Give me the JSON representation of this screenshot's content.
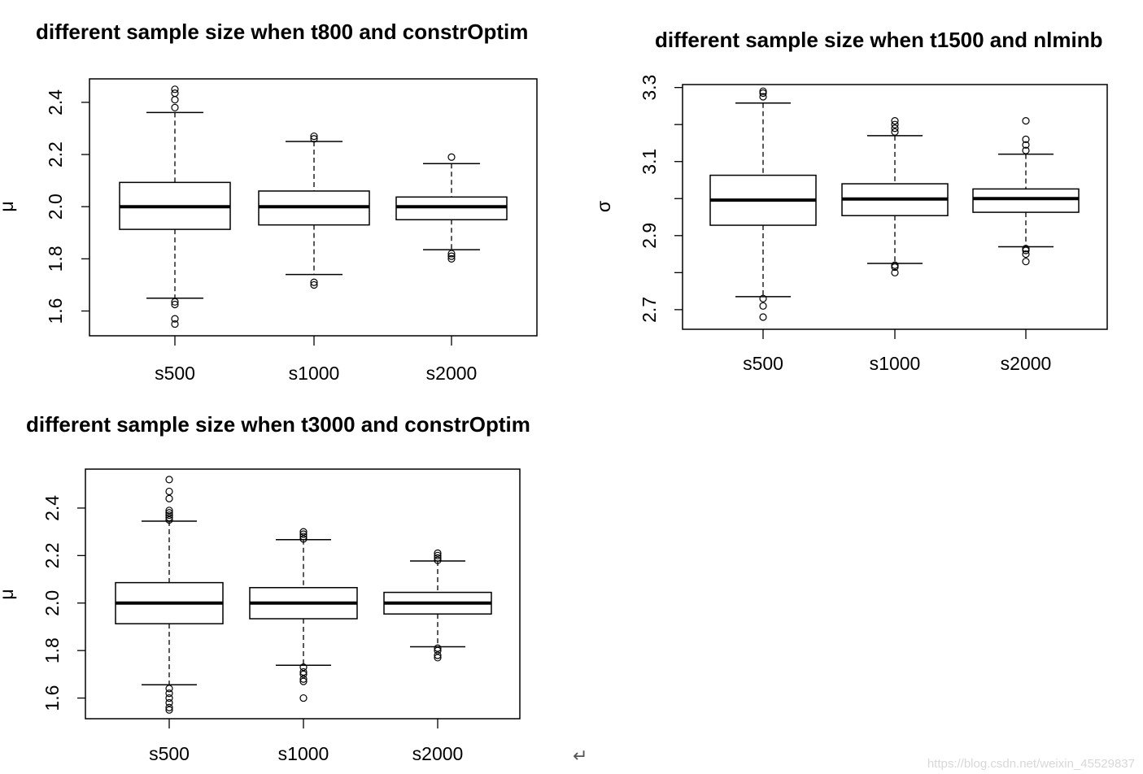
{
  "chart_data": [
    {
      "type": "box",
      "title": "different sample size when t800 and constrOptim",
      "ylabel": "μ",
      "xlabel": "",
      "categories": [
        "s500",
        "s1000",
        "s2000"
      ],
      "ylim": [
        1.505,
        2.49
      ],
      "yticks": [
        1.6,
        1.8,
        2.0,
        2.2,
        2.4
      ],
      "ytick_labels": [
        "1.6",
        "1.8",
        "2.0",
        "2.2",
        "2.4"
      ],
      "series": [
        {
          "category": "s500",
          "whisker_low": 1.649,
          "q1": 1.913,
          "median": 2.0,
          "q3": 2.093,
          "whisker_high": 2.361,
          "outliers": [
            2.45,
            2.435,
            2.41,
            2.38,
            1.635,
            1.625,
            1.57,
            1.55
          ]
        },
        {
          "category": "s1000",
          "whisker_low": 1.74,
          "q1": 1.93,
          "median": 2.0,
          "q3": 2.06,
          "whisker_high": 2.25,
          "outliers": [
            2.27,
            2.26,
            1.71,
            1.7
          ]
        },
        {
          "category": "s2000",
          "whisker_low": 1.835,
          "q1": 1.95,
          "median": 2.0,
          "q3": 2.037,
          "whisker_high": 2.165,
          "outliers": [
            2.19,
            1.82,
            1.81,
            1.8
          ]
        }
      ]
    },
    {
      "type": "box",
      "title": "different sample size when t1500 and nlminb",
      "ylabel": "σ",
      "xlabel": "",
      "categories": [
        "s500",
        "s1000",
        "s2000"
      ],
      "ylim": [
        2.647,
        3.308
      ],
      "yticks": [
        2.7,
        2.8,
        2.9,
        3.0,
        3.1,
        3.2,
        3.3
      ],
      "ytick_labels": [
        "2.7",
        "",
        "2.9",
        "",
        "3.1",
        "",
        "3.3"
      ],
      "series": [
        {
          "category": "s500",
          "whisker_low": 2.735,
          "q1": 2.928,
          "median": 2.996,
          "q3": 3.063,
          "whisker_high": 3.258,
          "outliers": [
            3.29,
            3.285,
            3.275,
            2.73,
            2.71,
            2.68
          ]
        },
        {
          "category": "s1000",
          "whisker_low": 2.825,
          "q1": 2.954,
          "median": 2.999,
          "q3": 3.04,
          "whisker_high": 3.17,
          "outliers": [
            3.21,
            3.2,
            3.19,
            3.18,
            2.82,
            2.815,
            2.8
          ]
        },
        {
          "category": "s2000",
          "whisker_low": 2.87,
          "q1": 2.963,
          "median": 3.0,
          "q3": 3.026,
          "whisker_high": 3.12,
          "outliers": [
            3.21,
            3.16,
            3.145,
            3.13,
            2.865,
            2.86,
            2.85,
            2.83
          ]
        }
      ]
    },
    {
      "type": "box",
      "title": "different sample size when t3000 and constrOptim",
      "ylabel": "μ",
      "xlabel": "",
      "categories": [
        "s500",
        "s1000",
        "s2000"
      ],
      "ylim": [
        1.513,
        2.564
      ],
      "yticks": [
        1.6,
        1.8,
        2.0,
        2.2,
        2.4
      ],
      "ytick_labels": [
        "1.6",
        "1.8",
        "2.0",
        "2.2",
        "2.4"
      ],
      "series": [
        {
          "category": "s500",
          "whisker_low": 1.656,
          "q1": 1.913,
          "median": 2.0,
          "q3": 2.086,
          "whisker_high": 2.345,
          "outliers": [
            2.52,
            2.47,
            2.44,
            2.39,
            2.38,
            2.37,
            2.36,
            2.35,
            1.64,
            1.62,
            1.6,
            1.58,
            1.56,
            1.55
          ]
        },
        {
          "category": "s1000",
          "whisker_low": 1.738,
          "q1": 1.934,
          "median": 2.0,
          "q3": 2.065,
          "whisker_high": 2.267,
          "outliers": [
            2.3,
            2.29,
            2.28,
            2.27,
            1.73,
            1.71,
            1.7,
            1.68,
            1.67,
            1.6
          ]
        },
        {
          "category": "s2000",
          "whisker_low": 1.816,
          "q1": 1.954,
          "median": 2.0,
          "q3": 2.045,
          "whisker_high": 2.177,
          "outliers": [
            2.21,
            2.2,
            2.19,
            2.18,
            1.81,
            1.8,
            1.78,
            1.77
          ]
        }
      ]
    }
  ],
  "watermark": "https://blog.csdn.net/weixin_45529837",
  "return_mark": "↵"
}
